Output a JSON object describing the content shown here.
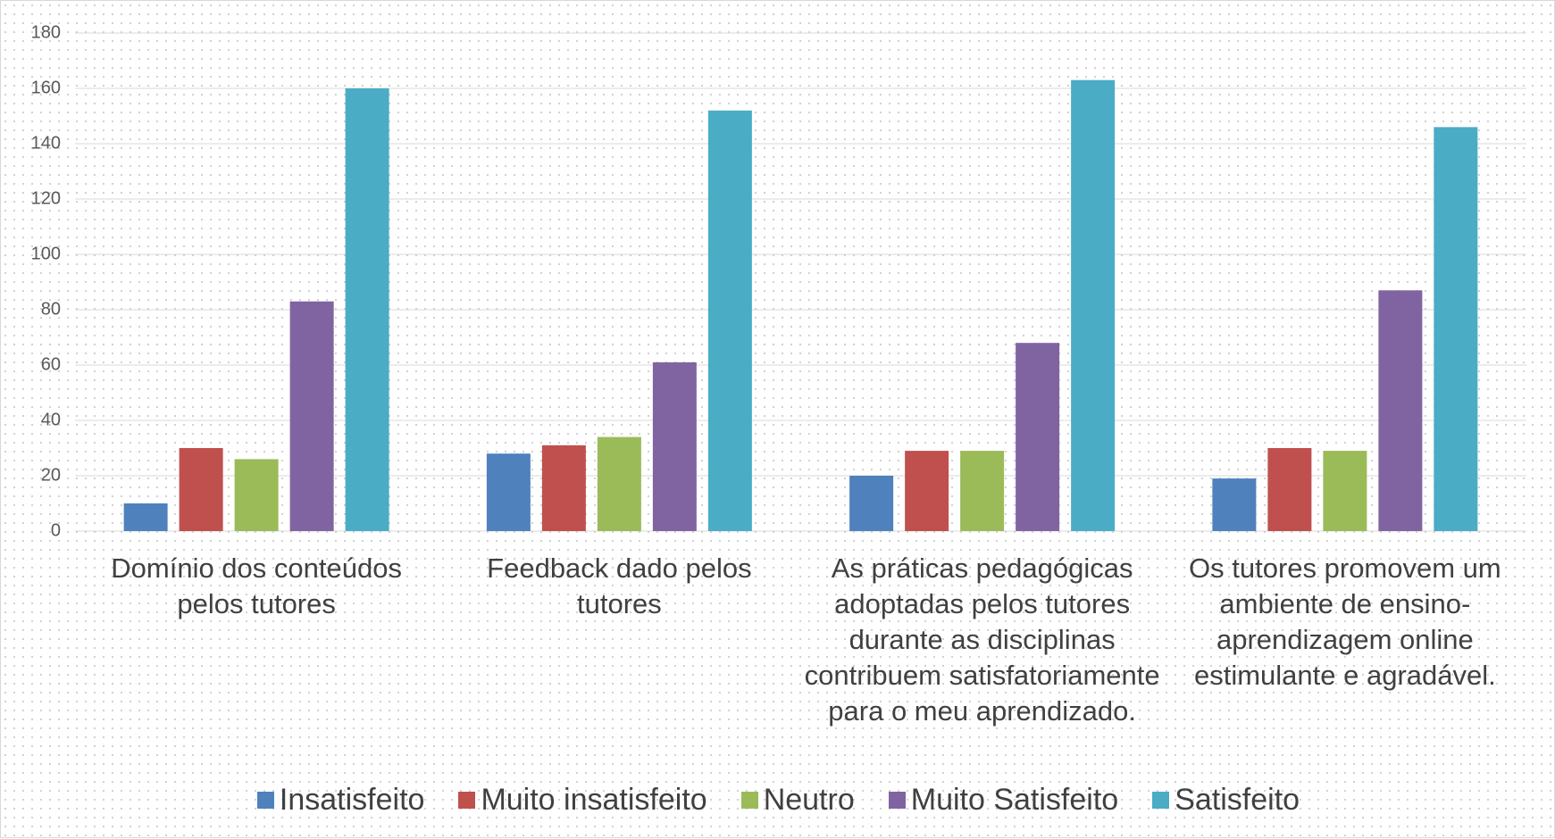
{
  "chart_data": {
    "type": "bar",
    "categories": [
      "Domínio dos conteúdos pelos tutores",
      "Feedback dado pelos tutores",
      "As práticas pedagógicas adoptadas pelos tutores durante as disciplinas contribuem satisfatoriamente para o meu aprendizado.",
      "Os tutores promovem um ambiente de ensino-aprendizagem online estimulante e agradável."
    ],
    "series": [
      {
        "name": "Insatisfeito",
        "color": "#4f81bd",
        "values": [
          10,
          28,
          20,
          19
        ]
      },
      {
        "name": "Muito insatisfeito",
        "color": "#c0504d",
        "values": [
          30,
          31,
          29,
          30
        ]
      },
      {
        "name": "Neutro",
        "color": "#9bbb59",
        "values": [
          26,
          34,
          29,
          29
        ]
      },
      {
        "name": "Muito Satisfeito",
        "color": "#8064a2",
        "values": [
          83,
          61,
          68,
          87
        ]
      },
      {
        "name": "Satisfeito",
        "color": "#4bacc6",
        "values": [
          160,
          152,
          163,
          146
        ]
      }
    ],
    "ylim": [
      0,
      180
    ],
    "yticks": [
      0,
      20,
      40,
      60,
      80,
      100,
      120,
      140,
      160,
      180
    ],
    "grid": true,
    "legend": "bottom"
  }
}
